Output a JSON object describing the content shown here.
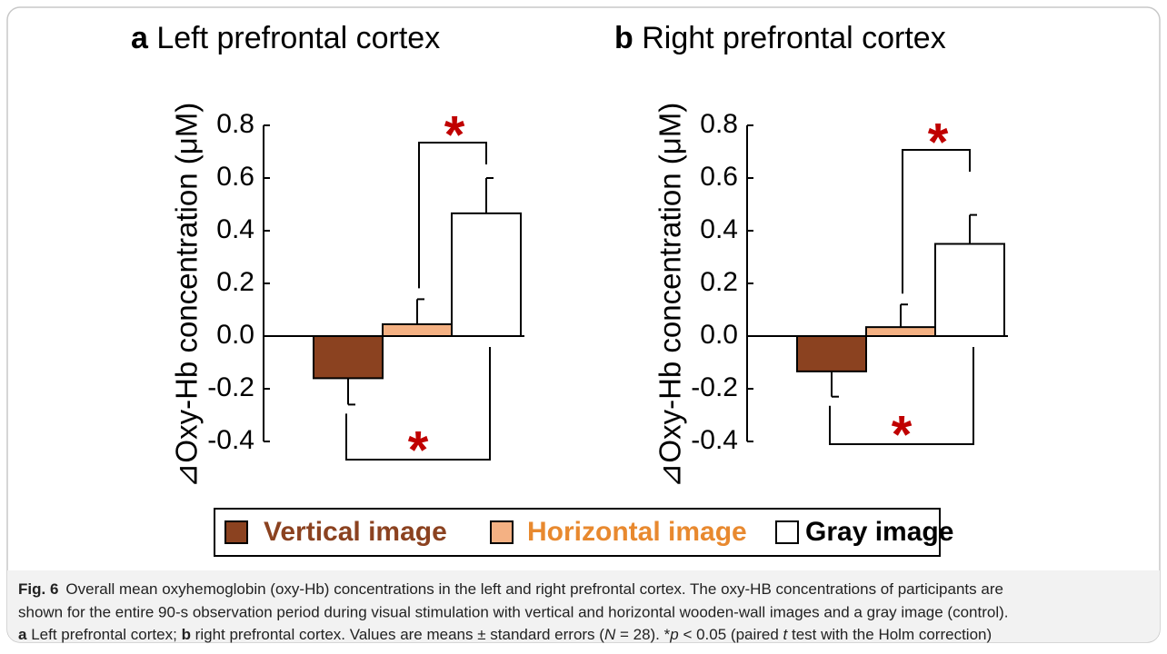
{
  "chart_data": [
    {
      "type": "bar",
      "panel": "a",
      "title": "Left prefrontal cortex",
      "y_label": "⊿Oxy-Hb concentration (μM)",
      "ylim": [
        -0.4,
        0.8
      ],
      "yticks": [
        0.8,
        0.6,
        0.4,
        0.2,
        {
          "value": 0,
          "label": "0.0"
        },
        -0.2,
        -0.4
      ],
      "series": [
        {
          "name": "Vertical image",
          "color": "#8B4220",
          "values": [
            -0.16
          ],
          "errors": [
            0.1
          ]
        },
        {
          "name": "Horizontal image",
          "color": "#F4B183",
          "values": [
            0.045
          ],
          "errors": [
            0.095
          ]
        },
        {
          "name": "Gray image",
          "color": "#FFFFFF",
          "values": [
            0.466
          ],
          "errors": [
            0.134
          ]
        }
      ],
      "annotations": [
        "*",
        "*"
      ]
    },
    {
      "type": "bar",
      "panel": "b",
      "title": "Right prefrontal cortex",
      "y_label": "⊿Oxy-Hb concentration (μM)",
      "ylim": [
        -0.4,
        0.8
      ],
      "yticks": [
        0.8,
        0.6,
        0.4,
        0.2,
        {
          "value": 0,
          "label": "0.0"
        },
        -0.2,
        -0.4
      ],
      "series": [
        {
          "name": "Vertical image",
          "color": "#8B4220",
          "values": [
            -0.134
          ],
          "errors": [
            0.096
          ]
        },
        {
          "name": "Horizontal image",
          "color": "#F4B183",
          "values": [
            0.034
          ],
          "errors": [
            0.086
          ]
        },
        {
          "name": "Gray image",
          "color": "#FFFFFF",
          "values": [
            0.35
          ],
          "errors": [
            0.11
          ]
        }
      ],
      "annotations": [
        "*",
        "*"
      ]
    }
  ],
  "caption": {
    "label": "Fig. 6",
    "line1": "Overall mean oxyhemoglobin (oxy-Hb) concentrations in the left and right prefrontal cortex. The oxy-HB concentrations of participants are",
    "line2": "shown for the entire 90-s observation period during visual stimulation with vertical and horizontal wooden-wall images and a gray image (control).",
    "line3": [
      "a",
      " Left prefrontal cortex; ",
      "b",
      " right prefrontal cortex. Values are means ± standard errors (",
      "N",
      " = 28). *",
      "p",
      " < 0.05 (paired ",
      "t",
      " test with the Holm correction)"
    ]
  }
}
